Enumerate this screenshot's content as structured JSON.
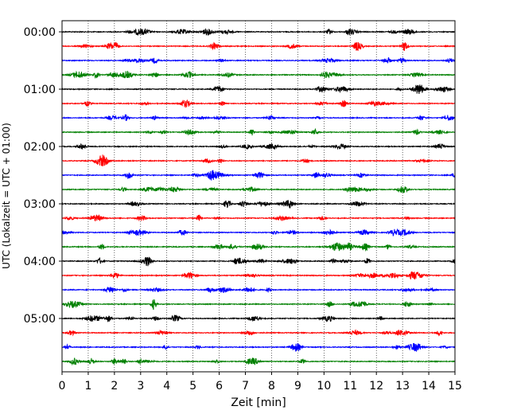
{
  "chart_data": {
    "type": "line",
    "title": "",
    "xlabel": "Zeit  [min]",
    "ylabel": "UTC (Lokalzeit = UTC + 01:00)",
    "xlim": [
      0,
      15
    ],
    "x_ticks": [
      "0",
      "1",
      "2",
      "3",
      "4",
      "5",
      "6",
      "7",
      "8",
      "9",
      "10",
      "11",
      "12",
      "13",
      "14",
      "15"
    ],
    "y_ticks": [
      "00:00",
      "01:00",
      "02:00",
      "03:00",
      "04:00",
      "05:00"
    ],
    "grid": "vertical dotted",
    "legend": "none",
    "trace_colors": [
      "#000000",
      "#ff0000",
      "#0000ff",
      "#008000"
    ],
    "series": [
      {
        "start": "00:00"
      },
      {
        "start": "00:15"
      },
      {
        "start": "00:30"
      },
      {
        "start": "00:45"
      },
      {
        "start": "01:00"
      },
      {
        "start": "01:15"
      },
      {
        "start": "01:30"
      },
      {
        "start": "01:45"
      },
      {
        "start": "02:00"
      },
      {
        "start": "02:15"
      },
      {
        "start": "02:30"
      },
      {
        "start": "02:45"
      },
      {
        "start": "03:00"
      },
      {
        "start": "03:15"
      },
      {
        "start": "03:30"
      },
      {
        "start": "03:45"
      },
      {
        "start": "04:00"
      },
      {
        "start": "04:15"
      },
      {
        "start": "04:30"
      },
      {
        "start": "04:45"
      },
      {
        "start": "05:00"
      },
      {
        "start": "05:15"
      },
      {
        "start": "05:30"
      },
      {
        "start": "05:45"
      }
    ]
  }
}
